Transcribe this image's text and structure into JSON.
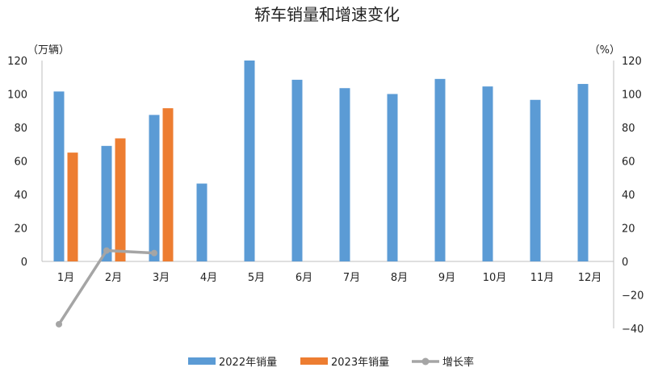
{
  "chart_data": {
    "type": "bar",
    "title": "轿车销量和增速变化",
    "left_unit": "（万辆）",
    "right_unit": "（%）",
    "categories": [
      "1月",
      "2月",
      "3月",
      "4月",
      "5月",
      "6月",
      "7月",
      "8月",
      "9月",
      "10月",
      "11月",
      "12月"
    ],
    "series": [
      {
        "name": "2022年销量",
        "type": "bar",
        "axis": "left",
        "color": "#5B9BD5",
        "values": [
          101.5,
          69,
          87.5,
          46.5,
          120,
          108.5,
          103.5,
          100,
          109,
          104.5,
          96.5,
          106
        ]
      },
      {
        "name": "2023年销量",
        "type": "bar",
        "axis": "left",
        "color": "#ED7D31",
        "values": [
          65,
          73.5,
          91.5,
          null,
          null,
          null,
          null,
          null,
          null,
          null,
          null,
          null
        ]
      },
      {
        "name": "增长率",
        "type": "line",
        "axis": "right",
        "color": "#A5A5A5",
        "values": [
          -37.5,
          6.5,
          5,
          null,
          null,
          null,
          null,
          null,
          null,
          null,
          null,
          null
        ]
      }
    ],
    "left_axis": {
      "min": 0,
      "max": 120,
      "step": 20,
      "ticks": [
        "0",
        "20",
        "40",
        "60",
        "80",
        "100",
        "120"
      ]
    },
    "right_axis": {
      "min": -40,
      "max": 120,
      "step": 20,
      "ticks": [
        "−40",
        "−20",
        "0",
        "20",
        "40",
        "60",
        "80",
        "100",
        "120"
      ],
      "negative_color": "#FF0000"
    },
    "legend_position": "bottom",
    "grid": false
  }
}
